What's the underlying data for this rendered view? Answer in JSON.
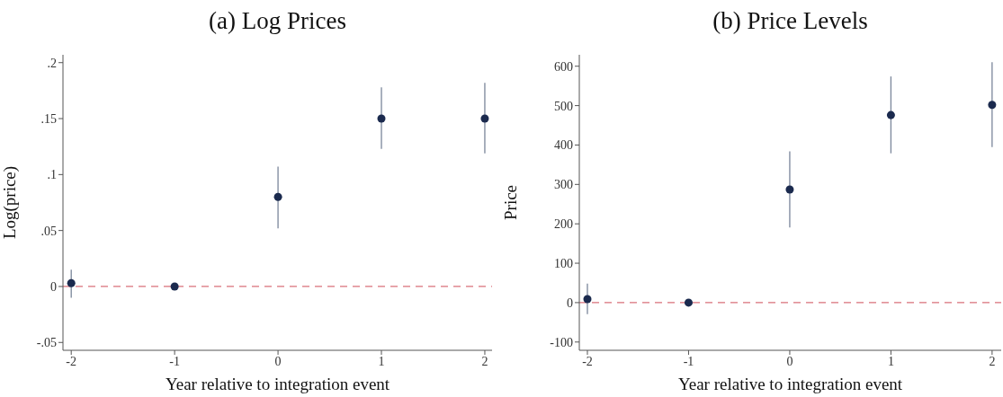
{
  "chart_data": [
    {
      "type": "scatter",
      "title": "(a) Log Prices",
      "xlabel": "Year relative to integration event",
      "ylabel": "Log(price)",
      "x": [
        -2,
        -1,
        0,
        1,
        2
      ],
      "values": [
        0.003,
        0,
        0.08,
        0.15,
        0.15
      ],
      "errors": [
        [
          -0.01,
          0.015
        ],
        null,
        [
          0.052,
          0.107
        ],
        [
          0.123,
          0.178
        ],
        [
          0.119,
          0.182
        ]
      ],
      "color": "#1b2a4e",
      "marker": "circle",
      "grid": false,
      "legend": false,
      "xlim": [
        -2.08,
        2.07
      ],
      "xticks": [
        -2,
        -1,
        0,
        1,
        2
      ],
      "ylim": [
        -0.057,
        0.207
      ],
      "yticks": [
        {
          "value": -0.05,
          "label": "-.05"
        },
        0,
        {
          "value": 0.05,
          "label": ".05"
        },
        {
          "value": 0.1,
          "label": ".1"
        },
        {
          "value": 0.15,
          "label": ".15"
        },
        {
          "value": 0.2,
          "label": ".2"
        }
      ],
      "ref_lines": [
        {
          "axis": "y",
          "value": 0,
          "color": "#d9707a",
          "line_style": "dashed"
        }
      ]
    },
    {
      "type": "scatter",
      "title": "(b) Price Levels",
      "xlabel": "Year relative to integration event",
      "ylabel": "Price",
      "x": [
        -2,
        -1,
        0,
        1,
        2
      ],
      "values": [
        9,
        0,
        287,
        476,
        502
      ],
      "errors": [
        [
          -29,
          48
        ],
        null,
        [
          191,
          384
        ],
        [
          379,
          574
        ],
        [
          395,
          610
        ]
      ],
      "color": "#1b2a4e",
      "marker": "circle",
      "grid": false,
      "legend": false,
      "xlim": [
        -2.08,
        2.09
      ],
      "xticks": [
        -2,
        -1,
        0,
        1,
        2
      ],
      "ylim": [
        -121,
        629
      ],
      "yticks": [
        -100,
        0,
        100,
        200,
        300,
        400,
        500,
        600
      ],
      "ref_lines": [
        {
          "axis": "y",
          "value": 0,
          "color": "#d9707a",
          "line_style": "dashed"
        }
      ]
    }
  ]
}
